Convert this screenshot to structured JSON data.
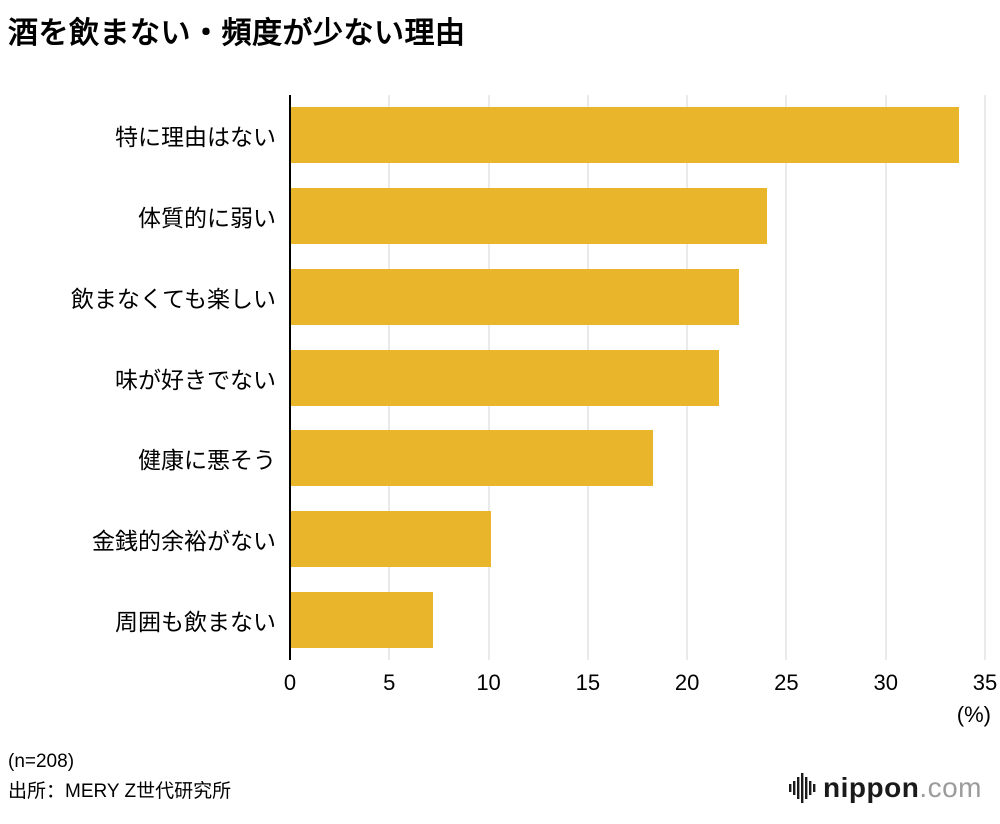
{
  "title": "酒を飲まない・頻度が少ない理由",
  "chart_data": {
    "type": "bar",
    "orientation": "horizontal",
    "title": "酒を飲まない・頻度が少ない理由",
    "categories": [
      "特に理由はない",
      "体質的に弱い",
      "飲まなくても楽しい",
      "味が好きでない",
      "健康に悪そう",
      "金銭的余裕がない",
      "周囲も飲まない"
    ],
    "values": [
      33.7,
      24.0,
      22.6,
      21.6,
      18.3,
      10.1,
      7.2
    ],
    "xlabel": "(%)",
    "xlim": [
      0,
      35
    ],
    "xticks": [
      0,
      5,
      10,
      15,
      20,
      25,
      30,
      35
    ],
    "grid": true,
    "bar_color": "#E8B52B",
    "gridline_color": "#d6d6d6",
    "axis_color": "#000000"
  },
  "axis": {
    "percent_label": "(%)"
  },
  "footer": {
    "sample_size": "(n=208)",
    "source": "出所：MERY Z世代研究所"
  },
  "logo": {
    "name": "nippon",
    "tld": ".com"
  }
}
